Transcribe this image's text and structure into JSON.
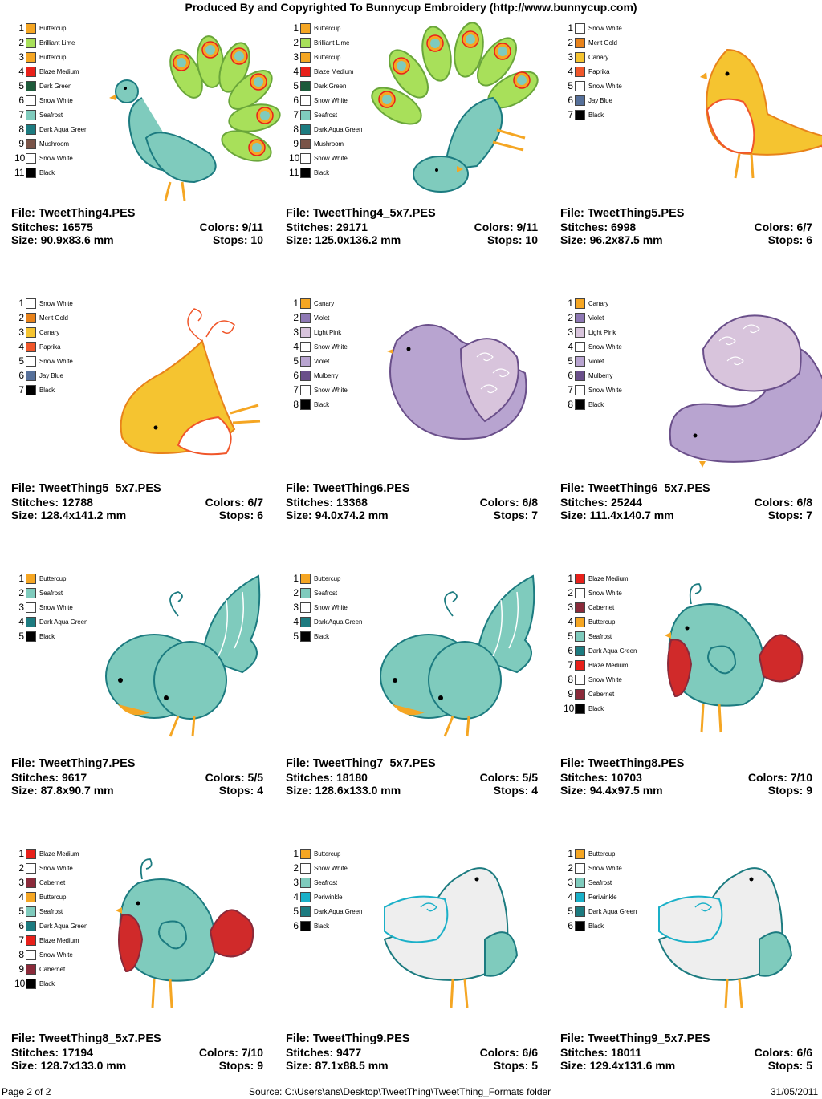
{
  "header": {
    "title": "Produced By and Copyrighted To Bunnycup Embroidery (http://www.bunnycup.com)"
  },
  "designs": [
    {
      "file": "File: TweetThing4.PES",
      "stitches": "Stitches: 16575",
      "size": "Size: 90.9x83.6 mm",
      "colors": "Colors: 9/11",
      "stops": "Stops: 10",
      "palette": [
        {
          "num": "1",
          "name": "Buttercup",
          "color": "#f5a623"
        },
        {
          "num": "2",
          "name": "Brilliant Lime",
          "color": "#a8e05a"
        },
        {
          "num": "3",
          "name": "Buttercup",
          "color": "#f5a623"
        },
        {
          "num": "4",
          "name": "Blaze Medium",
          "color": "#e8201a"
        },
        {
          "num": "5",
          "name": "Dark Green",
          "color": "#1d5a3a"
        },
        {
          "num": "6",
          "name": "Snow White",
          "color": "#ffffff"
        },
        {
          "num": "7",
          "name": "Seafrost",
          "color": "#7fcbbd"
        },
        {
          "num": "8",
          "name": "Dark Aqua Green",
          "color": "#1c7b80"
        },
        {
          "num": "9",
          "name": "Mushroom",
          "color": "#7a5448"
        },
        {
          "num": "10",
          "name": "Snow White",
          "color": "#ffffff"
        },
        {
          "num": "11",
          "name": "Black",
          "color": "#000000"
        }
      ],
      "art": "peacock"
    },
    {
      "file": "File: TweetThing4_5x7.PES",
      "stitches": "Stitches: 29171",
      "size": "Size: 125.0x136.2 mm",
      "colors": "Colors: 9/11",
      "stops": "Stops: 10",
      "palette": [
        {
          "num": "1",
          "name": "Buttercup",
          "color": "#f5a623"
        },
        {
          "num": "2",
          "name": "Brilliant Lime",
          "color": "#a8e05a"
        },
        {
          "num": "3",
          "name": "Buttercup",
          "color": "#f5a623"
        },
        {
          "num": "4",
          "name": "Blaze Medium",
          "color": "#e8201a"
        },
        {
          "num": "5",
          "name": "Dark Green",
          "color": "#1d5a3a"
        },
        {
          "num": "6",
          "name": "Snow White",
          "color": "#ffffff"
        },
        {
          "num": "7",
          "name": "Seafrost",
          "color": "#7fcbbd"
        },
        {
          "num": "8",
          "name": "Dark Aqua Green",
          "color": "#1c7b80"
        },
        {
          "num": "9",
          "name": "Mushroom",
          "color": "#7a5448"
        },
        {
          "num": "10",
          "name": "Snow White",
          "color": "#ffffff"
        },
        {
          "num": "11",
          "name": "Black",
          "color": "#000000"
        }
      ],
      "art": "peacock-rotated"
    },
    {
      "file": "File: TweetThing5.PES",
      "stitches": "Stitches: 6998",
      "size": "Size: 96.2x87.5 mm",
      "colors": "Colors: 6/7",
      "stops": "Stops: 6",
      "palette": [
        {
          "num": "1",
          "name": "Snow White",
          "color": "#ffffff"
        },
        {
          "num": "2",
          "name": "Merit Gold",
          "color": "#e8821a"
        },
        {
          "num": "3",
          "name": "Canary",
          "color": "#f5c430"
        },
        {
          "num": "4",
          "name": "Paprika",
          "color": "#f0562a"
        },
        {
          "num": "5",
          "name": "Snow White",
          "color": "#ffffff"
        },
        {
          "num": "6",
          "name": "Jay Blue",
          "color": "#56709a"
        },
        {
          "num": "7",
          "name": "Black",
          "color": "#000000"
        }
      ],
      "art": "yellow-bird"
    },
    {
      "file": "File: TweetThing5_5x7.PES",
      "stitches": "Stitches: 12788",
      "size": "Size: 128.4x141.2 mm",
      "colors": "Colors: 6/7",
      "stops": "Stops: 6",
      "palette": [
        {
          "num": "1",
          "name": "Snow White",
          "color": "#ffffff"
        },
        {
          "num": "2",
          "name": "Merit Gold",
          "color": "#e8821a"
        },
        {
          "num": "3",
          "name": "Canary",
          "color": "#f5c430"
        },
        {
          "num": "4",
          "name": "Paprika",
          "color": "#f0562a"
        },
        {
          "num": "5",
          "name": "Snow White",
          "color": "#ffffff"
        },
        {
          "num": "6",
          "name": "Jay Blue",
          "color": "#56709a"
        },
        {
          "num": "7",
          "name": "Black",
          "color": "#000000"
        }
      ],
      "art": "yellow-bird-rotated"
    },
    {
      "file": "File: TweetThing6.PES",
      "stitches": "Stitches: 13368",
      "size": "Size: 94.0x74.2 mm",
      "colors": "Colors: 6/8",
      "stops": "Stops: 7",
      "palette": [
        {
          "num": "1",
          "name": "Canary",
          "color": "#f5a623"
        },
        {
          "num": "2",
          "name": "Violet",
          "color": "#8e78b4"
        },
        {
          "num": "3",
          "name": "Light Pink",
          "color": "#d8c4dc"
        },
        {
          "num": "4",
          "name": "Snow White",
          "color": "#ffffff"
        },
        {
          "num": "5",
          "name": "Violet",
          "color": "#b8a4d0"
        },
        {
          "num": "6",
          "name": "Mulberry",
          "color": "#6a4f8a"
        },
        {
          "num": "7",
          "name": "Snow White",
          "color": "#ffffff"
        },
        {
          "num": "8",
          "name": "Black",
          "color": "#000000"
        }
      ],
      "art": "purple-bird"
    },
    {
      "file": "File: TweetThing6_5x7.PES",
      "stitches": "Stitches: 25244",
      "size": "Size: 111.4x140.7 mm",
      "colors": "Colors: 6/8",
      "stops": "Stops: 7",
      "palette": [
        {
          "num": "1",
          "name": "Canary",
          "color": "#f5a623"
        },
        {
          "num": "2",
          "name": "Violet",
          "color": "#8e78b4"
        },
        {
          "num": "3",
          "name": "Light Pink",
          "color": "#d8c4dc"
        },
        {
          "num": "4",
          "name": "Snow White",
          "color": "#ffffff"
        },
        {
          "num": "5",
          "name": "Violet",
          "color": "#b8a4d0"
        },
        {
          "num": "6",
          "name": "Mulberry",
          "color": "#6a4f8a"
        },
        {
          "num": "7",
          "name": "Snow White",
          "color": "#ffffff"
        },
        {
          "num": "8",
          "name": "Black",
          "color": "#000000"
        }
      ],
      "art": "purple-bird-rotated"
    },
    {
      "file": "File: TweetThing7.PES",
      "stitches": "Stitches: 9617",
      "size": "Size: 87.8x90.7 mm",
      "colors": "Colors: 5/5",
      "stops": "Stops: 4",
      "palette": [
        {
          "num": "1",
          "name": "Buttercup",
          "color": "#f5a623"
        },
        {
          "num": "2",
          "name": "Seafrost",
          "color": "#7fcbbd"
        },
        {
          "num": "3",
          "name": "Snow White",
          "color": "#ffffff"
        },
        {
          "num": "4",
          "name": "Dark Aqua Green",
          "color": "#1c7b80"
        },
        {
          "num": "5",
          "name": "Black",
          "color": "#000000"
        }
      ],
      "art": "round-teal-bird"
    },
    {
      "file": "File: TweetThing7_5x7.PES",
      "stitches": "Stitches: 18180",
      "size": "Size: 128.6x133.0 mm",
      "colors": "Colors: 5/5",
      "stops": "Stops: 4",
      "palette": [
        {
          "num": "1",
          "name": "Buttercup",
          "color": "#f5a623"
        },
        {
          "num": "2",
          "name": "Seafrost",
          "color": "#7fcbbd"
        },
        {
          "num": "3",
          "name": "Snow White",
          "color": "#ffffff"
        },
        {
          "num": "4",
          "name": "Dark Aqua Green",
          "color": "#1c7b80"
        },
        {
          "num": "5",
          "name": "Black",
          "color": "#000000"
        }
      ],
      "art": "round-teal-bird"
    },
    {
      "file": "File: TweetThing8.PES",
      "stitches": "Stitches: 10703",
      "size": "Size: 94.4x97.5 mm",
      "colors": "Colors: 7/10",
      "stops": "Stops: 9",
      "palette": [
        {
          "num": "1",
          "name": "Blaze Medium",
          "color": "#e8201a"
        },
        {
          "num": "2",
          "name": "Snow White",
          "color": "#ffffff"
        },
        {
          "num": "3",
          "name": "Cabernet",
          "color": "#8a2a3a"
        },
        {
          "num": "4",
          "name": "Buttercup",
          "color": "#f5a623"
        },
        {
          "num": "5",
          "name": "Seafrost",
          "color": "#7fcbbd"
        },
        {
          "num": "6",
          "name": "Dark Aqua Green",
          "color": "#1c7b80"
        },
        {
          "num": "7",
          "name": "Blaze Medium",
          "color": "#e8201a"
        },
        {
          "num": "8",
          "name": "Snow White",
          "color": "#ffffff"
        },
        {
          "num": "9",
          "name": "Cabernet",
          "color": "#8a2a3a"
        },
        {
          "num": "10",
          "name": "Black",
          "color": "#000000"
        }
      ],
      "art": "red-wing-bird"
    },
    {
      "file": "File: TweetThing8_5x7.PES",
      "stitches": "Stitches: 17194",
      "size": "Size: 128.7x133.0 mm",
      "colors": "Colors: 7/10",
      "stops": "Stops: 9",
      "palette": [
        {
          "num": "1",
          "name": "Blaze Medium",
          "color": "#e8201a"
        },
        {
          "num": "2",
          "name": "Snow White",
          "color": "#ffffff"
        },
        {
          "num": "3",
          "name": "Cabernet",
          "color": "#8a2a3a"
        },
        {
          "num": "4",
          "name": "Buttercup",
          "color": "#f5a623"
        },
        {
          "num": "5",
          "name": "Seafrost",
          "color": "#7fcbbd"
        },
        {
          "num": "6",
          "name": "Dark Aqua Green",
          "color": "#1c7b80"
        },
        {
          "num": "7",
          "name": "Blaze Medium",
          "color": "#e8201a"
        },
        {
          "num": "8",
          "name": "Snow White",
          "color": "#ffffff"
        },
        {
          "num": "9",
          "name": "Cabernet",
          "color": "#8a2a3a"
        },
        {
          "num": "10",
          "name": "Black",
          "color": "#000000"
        }
      ],
      "art": "red-wing-bird"
    },
    {
      "file": "File: TweetThing9.PES",
      "stitches": "Stitches: 9477",
      "size": "Size: 87.1x88.5 mm",
      "colors": "Colors: 6/6",
      "stops": "Stops: 5",
      "palette": [
        {
          "num": "1",
          "name": "Buttercup",
          "color": "#f5a623"
        },
        {
          "num": "2",
          "name": "Snow White",
          "color": "#ffffff"
        },
        {
          "num": "3",
          "name": "Seafrost",
          "color": "#7fcbbd"
        },
        {
          "num": "4",
          "name": "Periwinkle",
          "color": "#1ab0c8"
        },
        {
          "num": "5",
          "name": "Dark Aqua Green",
          "color": "#1c7b80"
        },
        {
          "num": "6",
          "name": "Black",
          "color": "#000000"
        }
      ],
      "art": "white-dove"
    },
    {
      "file": "File: TweetThing9_5x7.PES",
      "stitches": "Stitches: 18011",
      "size": "Size: 129.4x131.6 mm",
      "colors": "Colors: 6/6",
      "stops": "Stops: 5",
      "palette": [
        {
          "num": "1",
          "name": "Buttercup",
          "color": "#f5a623"
        },
        {
          "num": "2",
          "name": "Snow White",
          "color": "#ffffff"
        },
        {
          "num": "3",
          "name": "Seafrost",
          "color": "#7fcbbd"
        },
        {
          "num": "4",
          "name": "Periwinkle",
          "color": "#1ab0c8"
        },
        {
          "num": "5",
          "name": "Dark Aqua Green",
          "color": "#1c7b80"
        },
        {
          "num": "6",
          "name": "Black",
          "color": "#000000"
        }
      ],
      "art": "white-dove"
    }
  ],
  "footer": {
    "page": "Page 2 of 2",
    "source": "Source: C:\\Users\\ans\\Desktop\\TweetThing\\TweetThing_Formats folder",
    "date": "31/05/2011"
  }
}
